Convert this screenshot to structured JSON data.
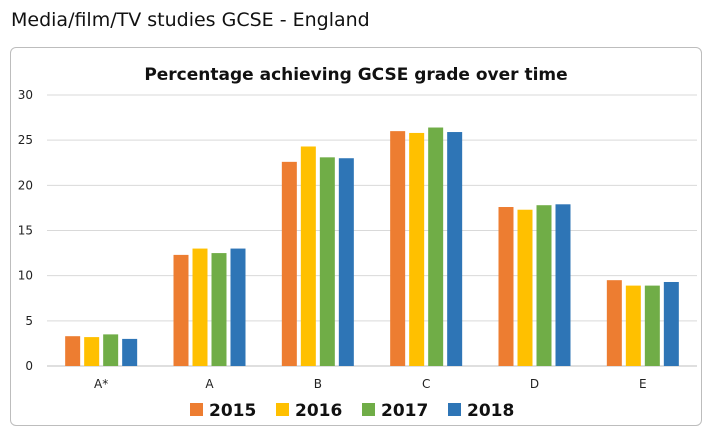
{
  "page": {
    "title": "Media/film/TV studies GCSE - England"
  },
  "chart_data": {
    "type": "bar",
    "title": "Percentage achieving GCSE grade over time",
    "xlabel": "",
    "ylabel": "",
    "categories": [
      "A*",
      "A",
      "B",
      "C",
      "D",
      "E"
    ],
    "ylim": [
      0,
      30
    ],
    "yticks": [
      0,
      5,
      10,
      15,
      20,
      25,
      30
    ],
    "grid": true,
    "legend_position": "bottom",
    "series": [
      {
        "name": "2015",
        "color": "#ED7D31",
        "values": [
          3.3,
          12.3,
          22.6,
          26.0,
          17.6,
          9.5
        ]
      },
      {
        "name": "2016",
        "color": "#FFC000",
        "values": [
          3.2,
          13.0,
          24.3,
          25.8,
          17.3,
          8.9
        ]
      },
      {
        "name": "2017",
        "color": "#70AD47",
        "values": [
          3.5,
          12.5,
          23.1,
          26.4,
          17.8,
          8.9
        ]
      },
      {
        "name": "2018",
        "color": "#2E75B6",
        "values": [
          3.0,
          13.0,
          23.0,
          25.9,
          17.9,
          9.3
        ]
      }
    ]
  }
}
